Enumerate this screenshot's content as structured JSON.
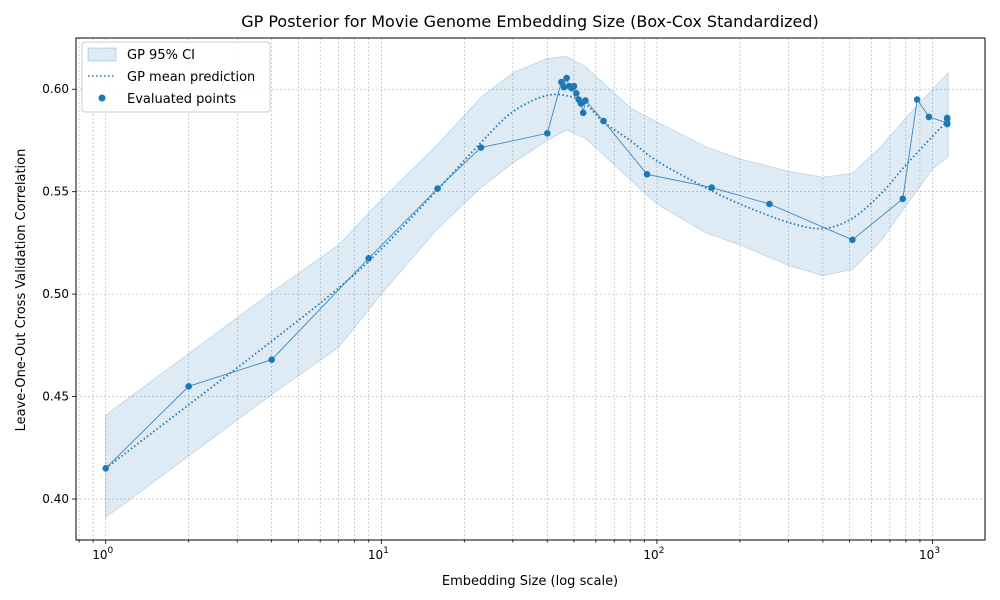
{
  "chart_data": {
    "type": "line",
    "title": "GP Posterior for Movie Genome Embedding Size (Box-Cox Standardized)",
    "xlabel": "Embedding Size (log scale)",
    "ylabel": "Leave-One-Out Cross Validation Correlation",
    "x_scale": "log",
    "xlim": [
      0.78,
      1550
    ],
    "ylim": [
      0.38,
      0.625
    ],
    "grid": true,
    "legend_position": "top-left",
    "x_ticks": [
      {
        "value": 1,
        "base": "10",
        "exp": "0"
      },
      {
        "value": 10,
        "base": "10",
        "exp": "1"
      },
      {
        "value": 100,
        "base": "10",
        "exp": "2"
      },
      {
        "value": 1000,
        "base": "10",
        "exp": "3"
      }
    ],
    "y_ticks": [
      0.4,
      0.45,
      0.5,
      0.55,
      0.6
    ],
    "y_tick_labels": [
      "0.40",
      "0.45",
      "0.50",
      "0.55",
      "0.60"
    ],
    "colors": {
      "series": "#1f77b4",
      "band": "#1f77b4",
      "grid": "#b0b0b0"
    },
    "legend": [
      "GP 95% CI",
      "GP mean prediction",
      "Evaluated points"
    ],
    "series": [
      {
        "name": "Evaluated points",
        "style": "points-connected",
        "x": [
          1,
          2,
          4,
          9,
          16,
          23,
          40,
          45,
          46,
          47,
          48,
          49,
          50,
          51,
          52,
          53,
          54,
          55,
          64,
          92,
          158,
          256,
          512,
          780,
          880,
          970,
          1130,
          1130,
          1130,
          1130
        ],
        "y": [
          0.415,
          0.455,
          0.468,
          0.5175,
          0.5515,
          0.5715,
          0.5785,
          0.6035,
          0.601,
          0.6055,
          0.6015,
          0.6005,
          0.6015,
          0.598,
          0.595,
          0.593,
          0.5885,
          0.5945,
          0.5845,
          0.5585,
          0.552,
          0.544,
          0.5265,
          0.5465,
          0.595,
          0.5865,
          0.5835,
          0.586,
          0.583,
          0.5855
        ]
      },
      {
        "name": "GP mean prediction",
        "style": "dotted",
        "x": [
          1,
          2,
          4,
          7,
          10,
          16,
          23,
          30,
          40,
          50,
          56,
          64,
          80,
          100,
          150,
          200,
          300,
          400,
          512,
          650,
          800,
          1000,
          1140
        ],
        "y": [
          0.415,
          0.446,
          0.477,
          0.503,
          0.522,
          0.551,
          0.574,
          0.589,
          0.597,
          0.596,
          0.592,
          0.584,
          0.575,
          0.565,
          0.552,
          0.544,
          0.535,
          0.532,
          0.537,
          0.549,
          0.563,
          0.577,
          0.585
        ]
      },
      {
        "name": "GP 95% CI",
        "style": "band",
        "x": [
          1,
          2,
          4,
          7,
          10,
          16,
          23,
          30,
          40,
          47,
          55,
          64,
          80,
          100,
          150,
          200,
          300,
          400,
          512,
          650,
          800,
          1000,
          1140
        ],
        "lower": [
          0.391,
          0.421,
          0.451,
          0.474,
          0.5,
          0.532,
          0.552,
          0.564,
          0.575,
          0.58,
          0.576,
          0.568,
          0.556,
          0.544,
          0.53,
          0.524,
          0.514,
          0.509,
          0.512,
          0.526,
          0.543,
          0.561,
          0.567
        ],
        "upper": [
          0.441,
          0.471,
          0.501,
          0.524,
          0.546,
          0.573,
          0.596,
          0.608,
          0.615,
          0.616,
          0.611,
          0.603,
          0.591,
          0.584,
          0.572,
          0.566,
          0.56,
          0.557,
          0.559,
          0.572,
          0.586,
          0.6,
          0.608
        ]
      }
    ]
  }
}
